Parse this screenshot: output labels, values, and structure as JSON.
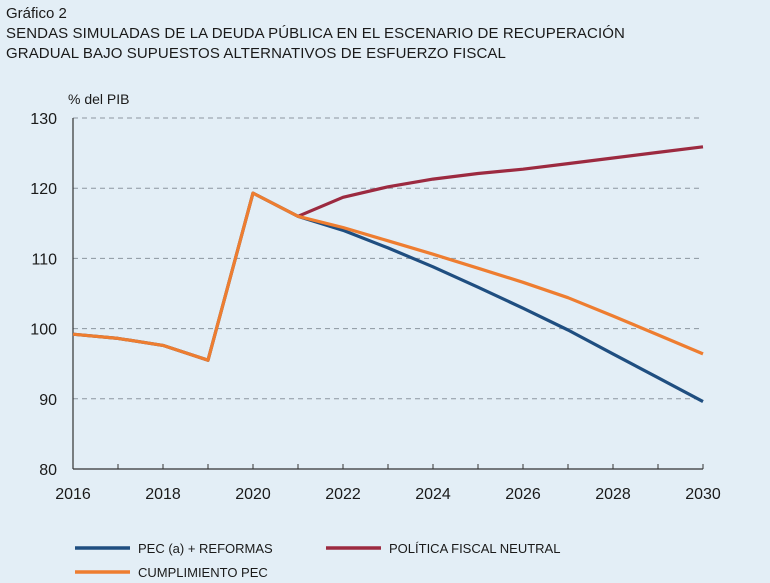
{
  "figure": {
    "label": "Gráfico 2",
    "title_lines": [
      "SENDAS SIMULADAS DE LA DEUDA PÚBLICA EN EL ESCENARIO DE RECUPERACIÓN",
      "GRADUAL BAJO SUPUESTOS ALTERNATIVOS DE ESFUERZO FISCAL"
    ]
  },
  "chart_data": {
    "type": "line",
    "ylabel": "% del PIB",
    "xlabel": "",
    "xlim": [
      2016,
      2030
    ],
    "ylim": [
      80,
      130
    ],
    "x_ticks": [
      2016,
      2018,
      2020,
      2022,
      2024,
      2026,
      2028,
      2030
    ],
    "y_ticks": [
      80,
      90,
      100,
      110,
      120,
      130
    ],
    "grid": "horizontal-dashed",
    "legend_position": "bottom",
    "series": [
      {
        "name": "PEC (a) + REFORMAS",
        "color": "#1f4e80",
        "x": [
          2016,
          2017,
          2018,
          2019,
          2020,
          2021,
          2022,
          2023,
          2024,
          2025,
          2026,
          2027,
          2028,
          2029,
          2030
        ],
        "values": [
          99.2,
          98.6,
          97.6,
          95.5,
          119.3,
          116.0,
          114.0,
          111.5,
          108.8,
          105.9,
          102.9,
          99.8,
          96.4,
          93.0,
          89.6
        ]
      },
      {
        "name": "POLÍTICA FISCAL NEUTRAL",
        "color": "#9c2a40",
        "x": [
          2021,
          2022,
          2023,
          2024,
          2025,
          2026,
          2027,
          2028,
          2029,
          2030
        ],
        "values": [
          116.0,
          118.7,
          120.2,
          121.3,
          122.1,
          122.7,
          123.5,
          124.3,
          125.1,
          125.9
        ]
      },
      {
        "name": "CUMPLIMIENTO PEC",
        "color": "#ee7d30",
        "x": [
          2016,
          2017,
          2018,
          2019,
          2020,
          2021,
          2022,
          2023,
          2024,
          2025,
          2026,
          2027,
          2028,
          2029,
          2030
        ],
        "values": [
          99.2,
          98.6,
          97.6,
          95.5,
          119.3,
          116.0,
          114.4,
          112.5,
          110.6,
          108.6,
          106.6,
          104.4,
          101.8,
          99.1,
          96.4
        ]
      }
    ]
  }
}
